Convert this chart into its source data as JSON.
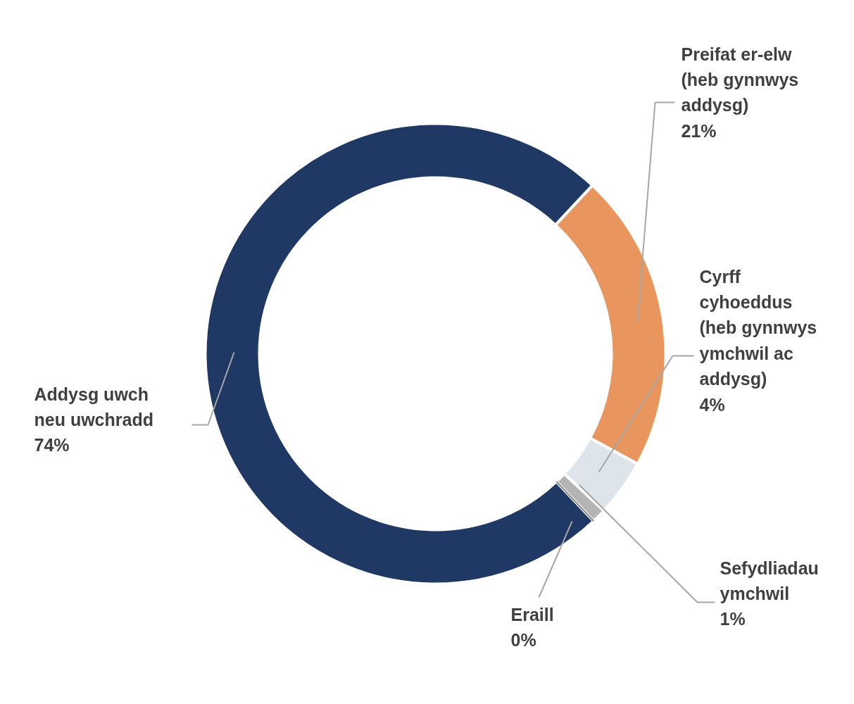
{
  "chart_data": {
    "type": "donut",
    "categories": [
      "Addysg uwch neu uwchradd",
      "Preifat er-elw (heb gynnwys addysg)",
      "Cyrff cyhoeddus (heb gynnwys ymchwil ac addysg)",
      "Sefydliadau ymchwil",
      "Eraill"
    ],
    "values": [
      74,
      21,
      4,
      1,
      0
    ],
    "value_labels": [
      "74%",
      "21%",
      "4%",
      "1%",
      "0%"
    ],
    "colors": [
      "#203864",
      "#e8965e",
      "#dde5ea",
      "#b4b4b4",
      "#7f7f7f"
    ]
  }
}
